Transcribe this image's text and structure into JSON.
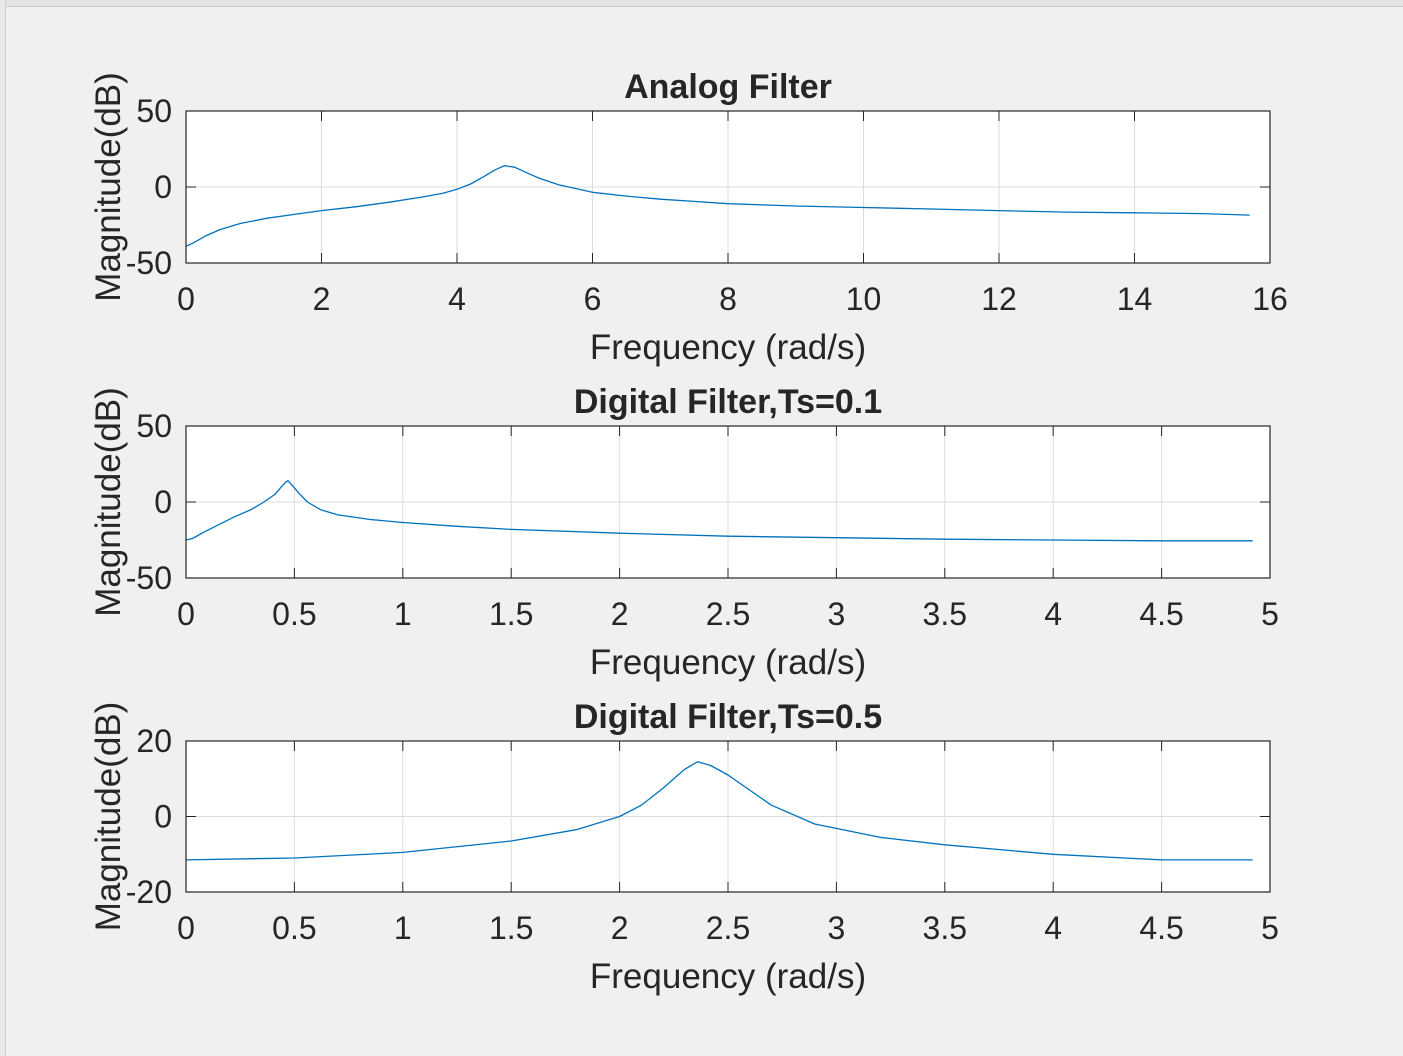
{
  "figure": {
    "background": "#f0f0f0",
    "line_color": "#0072bd",
    "grid_color": "#dcdcdc"
  },
  "chart_data": [
    {
      "type": "line",
      "title": "Analog Filter",
      "xlabel": "Frequency (rad/s)",
      "ylabel": "Magnitude(dB)",
      "xlim": [
        0,
        16
      ],
      "ylim": [
        -50,
        50
      ],
      "xticks": [
        "0",
        "2",
        "4",
        "6",
        "8",
        "10",
        "12",
        "14",
        "16"
      ],
      "yticks": [
        "-50",
        "0",
        "50"
      ],
      "grid": true,
      "series": [
        {
          "x": [
            0,
            0.1,
            0.3,
            0.5,
            0.8,
            1.2,
            1.6,
            2.0,
            2.5,
            3.0,
            3.5,
            3.8,
            4.0,
            4.2,
            4.4,
            4.55,
            4.7,
            4.85,
            5.0,
            5.2,
            5.5,
            5.8,
            6.0,
            6.5,
            7.0,
            7.5,
            8.0,
            9.0,
            10.0,
            11.0,
            12.0,
            13.0,
            14.0,
            15.0,
            15.7
          ],
          "y": [
            -39,
            -37,
            -32,
            -28,
            -24,
            -20.5,
            -18,
            -15.5,
            -13,
            -10,
            -6.5,
            -4,
            -1.5,
            2,
            7,
            11,
            14,
            13,
            10,
            6,
            1.5,
            -1.5,
            -3.5,
            -6,
            -8,
            -9.5,
            -11,
            -12.5,
            -13.5,
            -14.5,
            -15.5,
            -16.5,
            -17,
            -17.5,
            -18.5
          ]
        }
      ]
    },
    {
      "type": "line",
      "title": "Digital Filter,Ts=0.1",
      "xlabel": "Frequency (rad/s)",
      "ylabel": "Magnitude(dB)",
      "xlim": [
        0,
        5
      ],
      "ylim": [
        -50,
        50
      ],
      "xticks": [
        "0",
        "0.5",
        "1",
        "1.5",
        "2",
        "2.5",
        "3",
        "3.5",
        "4",
        "4.5",
        "5"
      ],
      "yticks": [
        "-50",
        "0",
        "50"
      ],
      "grid": true,
      "series": [
        {
          "x": [
            0,
            0.03,
            0.08,
            0.15,
            0.22,
            0.3,
            0.36,
            0.41,
            0.44,
            0.46,
            0.47,
            0.49,
            0.52,
            0.56,
            0.62,
            0.7,
            0.85,
            1.0,
            1.25,
            1.5,
            2.0,
            2.5,
            3.0,
            3.5,
            4.0,
            4.5,
            4.92
          ],
          "y": [
            -25,
            -24,
            -20,
            -15,
            -10,
            -5,
            0,
            5,
            10,
            13,
            14,
            11,
            6,
            0,
            -5,
            -8.5,
            -11.5,
            -13.5,
            -16,
            -18,
            -20.5,
            -22.5,
            -23.5,
            -24.5,
            -25,
            -25.5,
            -25.5
          ]
        }
      ]
    },
    {
      "type": "line",
      "title": "Digital Filter,Ts=0.5",
      "xlabel": "Frequency (rad/s)",
      "ylabel": "Magnitude(dB)",
      "xlim": [
        0,
        5
      ],
      "ylim": [
        -20,
        20
      ],
      "xticks": [
        "0",
        "0.5",
        "1",
        "1.5",
        "2",
        "2.5",
        "3",
        "3.5",
        "4",
        "4.5",
        "5"
      ],
      "yticks": [
        "-20",
        "0",
        "20"
      ],
      "grid": true,
      "series": [
        {
          "x": [
            0,
            0.5,
            1.0,
            1.5,
            1.8,
            2.0,
            2.1,
            2.2,
            2.3,
            2.36,
            2.42,
            2.5,
            2.6,
            2.7,
            2.9,
            3.2,
            3.5,
            4.0,
            4.5,
            4.92
          ],
          "y": [
            -11.5,
            -11,
            -9.5,
            -6.5,
            -3.5,
            0,
            3,
            7.5,
            12.5,
            14.5,
            13.5,
            11,
            7,
            3,
            -2,
            -5.5,
            -7.5,
            -10,
            -11.5,
            -11.5
          ]
        }
      ]
    }
  ]
}
